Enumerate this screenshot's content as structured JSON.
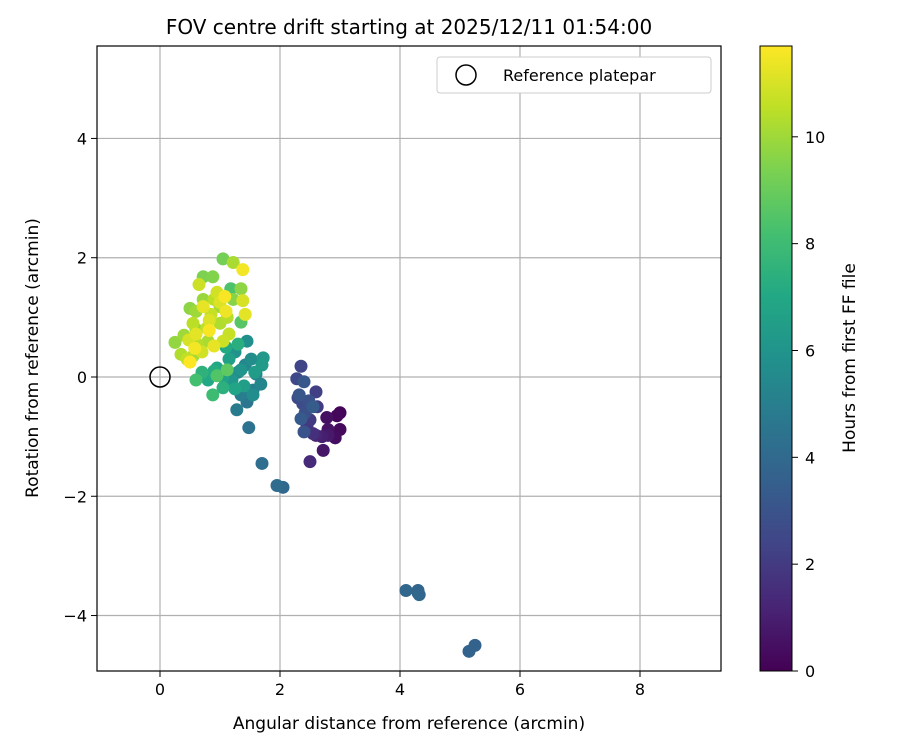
{
  "chart_data": {
    "type": "scatter",
    "title": "FOV centre drift starting at 2025/12/11 01:54:00",
    "xlabel": "Angular distance from reference (arcmin)",
    "ylabel": "Rotation from reference (arcmin)",
    "xlim": [
      -1.05,
      9.35
    ],
    "ylim": [
      -4.93,
      5.55
    ],
    "xticks": [
      0,
      2,
      4,
      6,
      8
    ],
    "yticks": [
      -4,
      -2,
      0,
      2,
      4
    ],
    "xtick_labels": [
      "0",
      "2",
      "4",
      "6",
      "8"
    ],
    "ytick_labels": [
      "−4",
      "−2",
      "0",
      "2",
      "4"
    ],
    "grid": true,
    "legend": {
      "position": "top-right",
      "label": "Reference platepar"
    },
    "reference_point": {
      "x": 0,
      "y": 0
    },
    "colorbar": {
      "label": "Hours from first FF file",
      "range": [
        0,
        11.7
      ],
      "ticks": [
        0,
        2,
        4,
        6,
        8,
        10
      ],
      "tick_labels": [
        "0",
        "2",
        "4",
        "6",
        "8",
        "10"
      ],
      "colormap": "viridis"
    },
    "points": [
      {
        "x": 3.0,
        "y": -0.6,
        "t": 0.1
      },
      {
        "x": 2.95,
        "y": -0.65,
        "t": 0.2
      },
      {
        "x": 3.0,
        "y": -0.88,
        "t": 0.3
      },
      {
        "x": 2.92,
        "y": -1.02,
        "t": 0.4
      },
      {
        "x": 2.78,
        "y": -0.68,
        "t": 0.5
      },
      {
        "x": 2.8,
        "y": -0.88,
        "t": 0.6
      },
      {
        "x": 2.72,
        "y": -1.23,
        "t": 0.7
      },
      {
        "x": 2.8,
        "y": -0.98,
        "t": 0.8
      },
      {
        "x": 2.7,
        "y": -1.0,
        "t": 1.0
      },
      {
        "x": 2.6,
        "y": -0.98,
        "t": 1.2
      },
      {
        "x": 2.5,
        "y": -1.42,
        "t": 1.4
      },
      {
        "x": 2.55,
        "y": -0.95,
        "t": 1.6
      },
      {
        "x": 2.45,
        "y": -0.82,
        "t": 1.8
      },
      {
        "x": 2.5,
        "y": -0.72,
        "t": 2.0
      },
      {
        "x": 2.62,
        "y": -0.5,
        "t": 2.1
      },
      {
        "x": 2.6,
        "y": -0.25,
        "t": 2.2
      },
      {
        "x": 2.35,
        "y": 0.18,
        "t": 2.4
      },
      {
        "x": 2.28,
        "y": -0.03,
        "t": 2.5
      },
      {
        "x": 2.3,
        "y": -0.35,
        "t": 2.6
      },
      {
        "x": 2.38,
        "y": -0.45,
        "t": 2.7
      },
      {
        "x": 2.42,
        "y": -0.6,
        "t": 2.8
      },
      {
        "x": 2.48,
        "y": -0.4,
        "t": 2.9
      },
      {
        "x": 2.4,
        "y": -0.92,
        "t": 3.0
      },
      {
        "x": 2.32,
        "y": -0.3,
        "t": 3.1
      },
      {
        "x": 2.4,
        "y": -0.08,
        "t": 3.2
      },
      {
        "x": 2.35,
        "y": -0.7,
        "t": 3.3
      },
      {
        "x": 2.55,
        "y": -0.5,
        "t": 3.4
      },
      {
        "x": 5.25,
        "y": -4.5,
        "t": 3.7
      },
      {
        "x": 5.15,
        "y": -4.6,
        "t": 3.7
      },
      {
        "x": 4.3,
        "y": -3.62,
        "t": 3.8
      },
      {
        "x": 4.3,
        "y": -3.58,
        "t": 3.8
      },
      {
        "x": 4.1,
        "y": -3.58,
        "t": 3.9
      },
      {
        "x": 4.32,
        "y": -3.65,
        "t": 3.9
      },
      {
        "x": 2.05,
        "y": -1.85,
        "t": 4.0
      },
      {
        "x": 1.95,
        "y": -1.82,
        "t": 4.1
      },
      {
        "x": 1.7,
        "y": -1.45,
        "t": 4.2
      },
      {
        "x": 1.48,
        "y": -0.85,
        "t": 4.4
      },
      {
        "x": 1.45,
        "y": -0.42,
        "t": 4.6
      },
      {
        "x": 1.28,
        "y": -0.55,
        "t": 4.8
      },
      {
        "x": 1.35,
        "y": -0.3,
        "t": 4.9
      },
      {
        "x": 1.55,
        "y": -0.22,
        "t": 5.0
      },
      {
        "x": 1.6,
        "y": 0.05,
        "t": 5.2
      },
      {
        "x": 1.68,
        "y": -0.12,
        "t": 5.3
      },
      {
        "x": 1.42,
        "y": 0.2,
        "t": 5.4
      },
      {
        "x": 1.3,
        "y": 0.08,
        "t": 5.5
      },
      {
        "x": 1.55,
        "y": -0.3,
        "t": 5.6
      },
      {
        "x": 1.52,
        "y": 0.3,
        "t": 5.7
      },
      {
        "x": 1.45,
        "y": 0.6,
        "t": 5.8
      },
      {
        "x": 1.25,
        "y": 0.42,
        "t": 5.9
      },
      {
        "x": 1.35,
        "y": 0.12,
        "t": 6.0
      },
      {
        "x": 1.2,
        "y": -0.05,
        "t": 6.1
      },
      {
        "x": 1.72,
        "y": 0.32,
        "t": 6.2
      },
      {
        "x": 1.7,
        "y": 0.2,
        "t": 6.3
      },
      {
        "x": 1.58,
        "y": 0.08,
        "t": 6.4
      },
      {
        "x": 1.4,
        "y": -0.15,
        "t": 6.5
      },
      {
        "x": 1.15,
        "y": 0.3,
        "t": 6.6
      },
      {
        "x": 1.05,
        "y": 0.0,
        "t": 6.7
      },
      {
        "x": 1.25,
        "y": -0.2,
        "t": 6.8
      },
      {
        "x": 0.95,
        "y": 0.15,
        "t": 6.9
      },
      {
        "x": 0.8,
        "y": -0.05,
        "t": 7.0
      },
      {
        "x": 1.1,
        "y": 0.5,
        "t": 7.1
      },
      {
        "x": 0.9,
        "y": 0.1,
        "t": 7.2
      },
      {
        "x": 1.3,
        "y": 0.55,
        "t": 7.3
      },
      {
        "x": 1.05,
        "y": -0.18,
        "t": 7.4
      },
      {
        "x": 0.7,
        "y": 0.08,
        "t": 7.5
      },
      {
        "x": 0.88,
        "y": -0.3,
        "t": 8.0
      },
      {
        "x": 0.6,
        "y": -0.05,
        "t": 8.2
      },
      {
        "x": 1.18,
        "y": 1.48,
        "t": 8.4
      },
      {
        "x": 0.95,
        "y": 0.02,
        "t": 8.5
      },
      {
        "x": 1.35,
        "y": 0.92,
        "t": 8.6
      },
      {
        "x": 1.12,
        "y": 0.12,
        "t": 8.8
      },
      {
        "x": 1.05,
        "y": 1.98,
        "t": 9.2
      },
      {
        "x": 0.72,
        "y": 1.68,
        "t": 9.4
      },
      {
        "x": 0.88,
        "y": 1.68,
        "t": 9.5
      },
      {
        "x": 1.22,
        "y": 1.3,
        "t": 9.6
      },
      {
        "x": 0.5,
        "y": 1.15,
        "t": 9.7
      },
      {
        "x": 1.35,
        "y": 1.48,
        "t": 9.7
      },
      {
        "x": 0.6,
        "y": 0.8,
        "t": 9.8
      },
      {
        "x": 0.25,
        "y": 0.58,
        "t": 9.8
      },
      {
        "x": 0.72,
        "y": 1.3,
        "t": 9.9
      },
      {
        "x": 0.6,
        "y": 1.1,
        "t": 10.0
      },
      {
        "x": 0.4,
        "y": 0.7,
        "t": 10.0
      },
      {
        "x": 0.55,
        "y": 0.35,
        "t": 10.1
      },
      {
        "x": 1.0,
        "y": 1.18,
        "t": 10.1
      },
      {
        "x": 0.8,
        "y": 0.6,
        "t": 10.2
      },
      {
        "x": 1.22,
        "y": 1.92,
        "t": 10.2
      },
      {
        "x": 0.35,
        "y": 0.38,
        "t": 10.3
      },
      {
        "x": 1.0,
        "y": 0.9,
        "t": 10.3
      },
      {
        "x": 0.62,
        "y": 0.55,
        "t": 10.4
      },
      {
        "x": 1.12,
        "y": 1.0,
        "t": 10.4
      },
      {
        "x": 0.9,
        "y": 1.3,
        "t": 10.5
      },
      {
        "x": 0.55,
        "y": 0.9,
        "t": 10.5
      },
      {
        "x": 0.78,
        "y": 0.82,
        "t": 10.6
      },
      {
        "x": 0.45,
        "y": 0.3,
        "t": 10.6
      },
      {
        "x": 1.15,
        "y": 0.72,
        "t": 10.7
      },
      {
        "x": 0.85,
        "y": 1.05,
        "t": 10.7
      },
      {
        "x": 0.65,
        "y": 1.55,
        "t": 10.8
      },
      {
        "x": 1.05,
        "y": 0.6,
        "t": 10.8
      },
      {
        "x": 0.95,
        "y": 1.42,
        "t": 10.9
      },
      {
        "x": 0.7,
        "y": 0.42,
        "t": 10.9
      },
      {
        "x": 1.38,
        "y": 1.28,
        "t": 11.0
      },
      {
        "x": 0.48,
        "y": 0.62,
        "t": 11.0
      },
      {
        "x": 0.82,
        "y": 0.95,
        "t": 11.1
      },
      {
        "x": 1.0,
        "y": 1.25,
        "t": 11.1
      },
      {
        "x": 0.6,
        "y": 0.72,
        "t": 11.2
      },
      {
        "x": 1.42,
        "y": 1.05,
        "t": 11.2
      },
      {
        "x": 0.9,
        "y": 0.52,
        "t": 11.3
      },
      {
        "x": 0.72,
        "y": 1.18,
        "t": 11.3
      },
      {
        "x": 1.1,
        "y": 1.1,
        "t": 11.4
      },
      {
        "x": 1.38,
        "y": 1.8,
        "t": 11.5
      },
      {
        "x": 0.58,
        "y": 0.48,
        "t": 11.5
      },
      {
        "x": 0.82,
        "y": 0.78,
        "t": 11.6
      },
      {
        "x": 1.08,
        "y": 1.35,
        "t": 11.6
      },
      {
        "x": 0.5,
        "y": 0.25,
        "t": 11.7
      }
    ]
  }
}
